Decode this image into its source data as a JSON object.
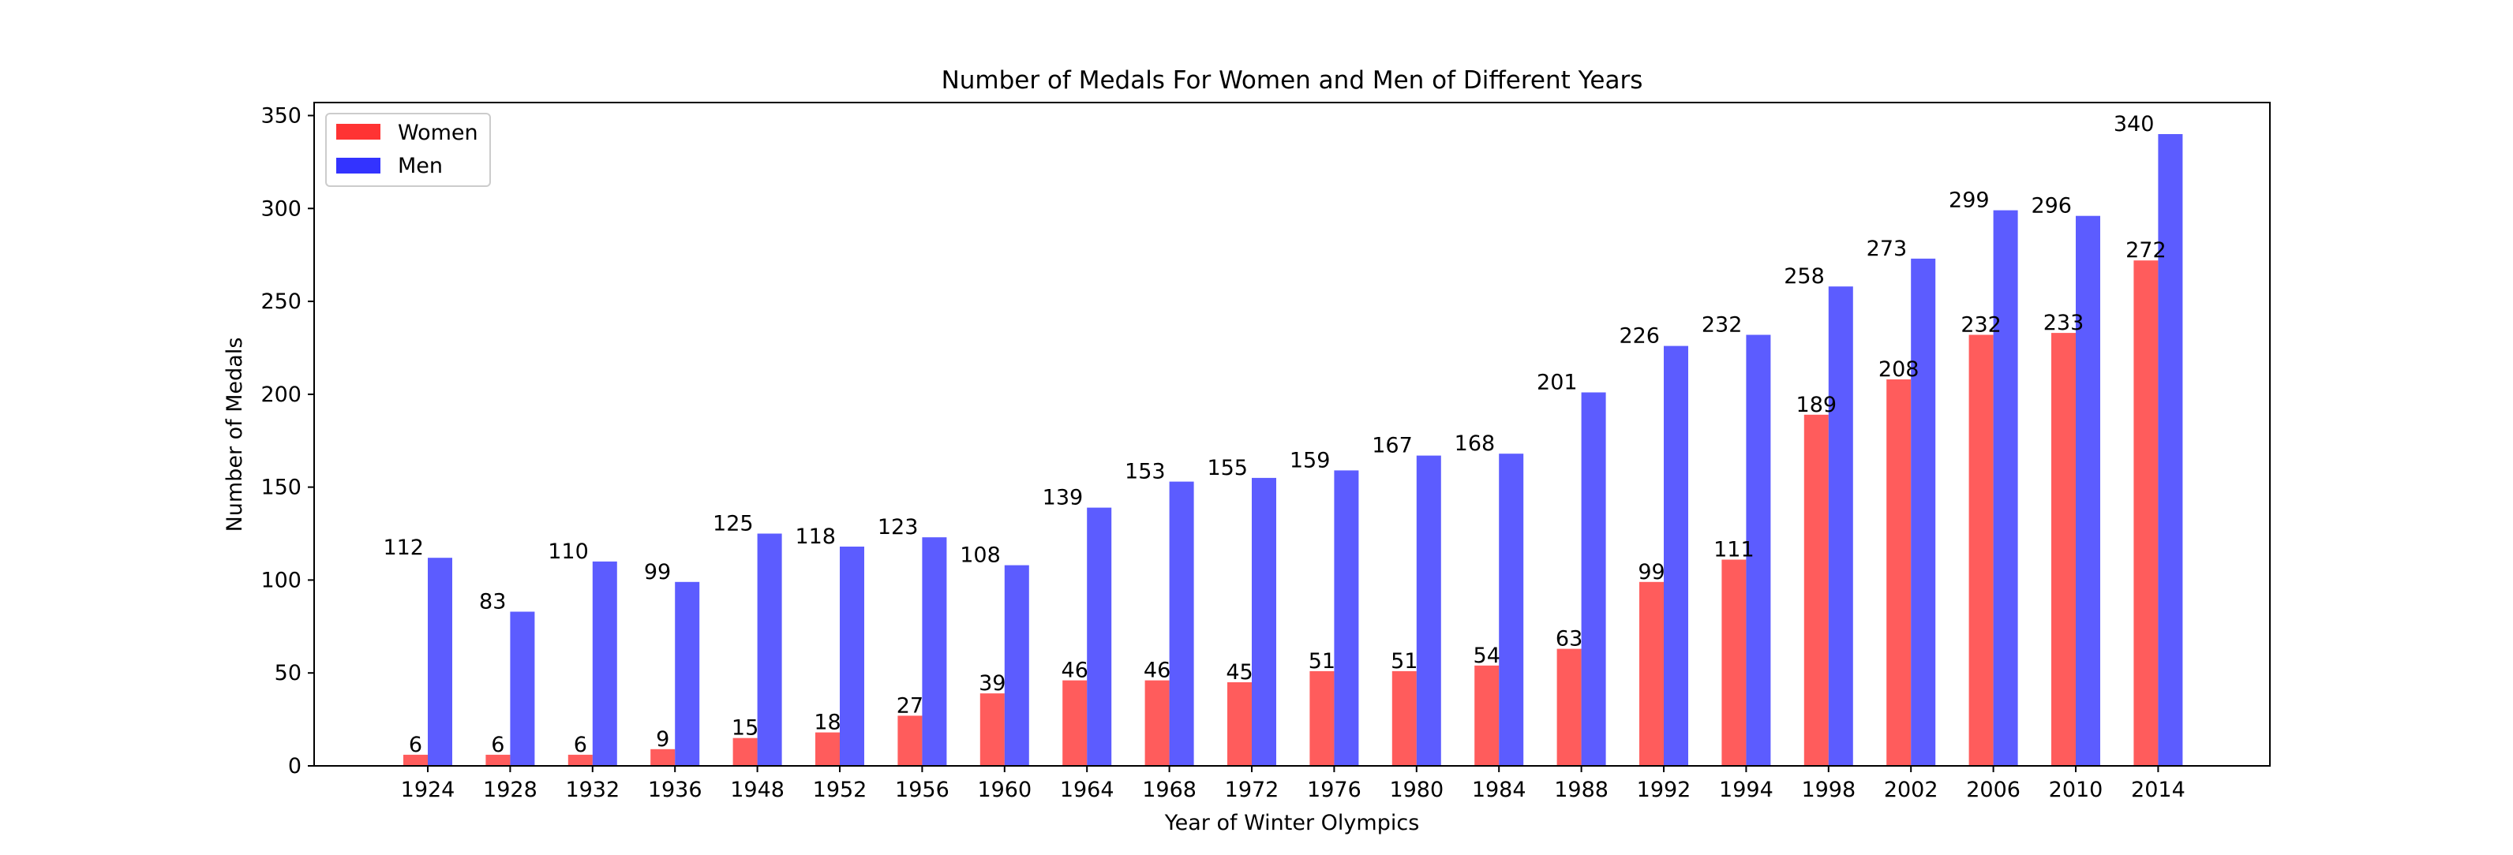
{
  "chart_data": {
    "type": "bar",
    "title": "Number of Medals For Women and Men of Different Years",
    "xlabel": "Year of Winter Olympics",
    "ylabel": "Number of Medals",
    "categories": [
      "1924",
      "1928",
      "1932",
      "1936",
      "1948",
      "1952",
      "1956",
      "1960",
      "1964",
      "1968",
      "1972",
      "1976",
      "1980",
      "1984",
      "1988",
      "1992",
      "1994",
      "1998",
      "2002",
      "2006",
      "2010",
      "2014"
    ],
    "series": [
      {
        "name": "Women",
        "color": "#ff3333",
        "values": [
          6,
          6,
          6,
          9,
          15,
          18,
          27,
          39,
          46,
          46,
          45,
          51,
          51,
          54,
          63,
          99,
          111,
          189,
          208,
          232,
          233,
          272
        ]
      },
      {
        "name": "Men",
        "color": "#3333ff",
        "values": [
          112,
          83,
          110,
          99,
          125,
          118,
          123,
          108,
          139,
          153,
          155,
          159,
          167,
          168,
          201,
          226,
          232,
          258,
          273,
          299,
          296,
          340
        ]
      }
    ],
    "ylim": [
      0,
      357
    ],
    "yticks": [
      0,
      50,
      100,
      150,
      200,
      250,
      300,
      350
    ],
    "grid": false,
    "legend_position": "top-left",
    "data_labels": true
  }
}
